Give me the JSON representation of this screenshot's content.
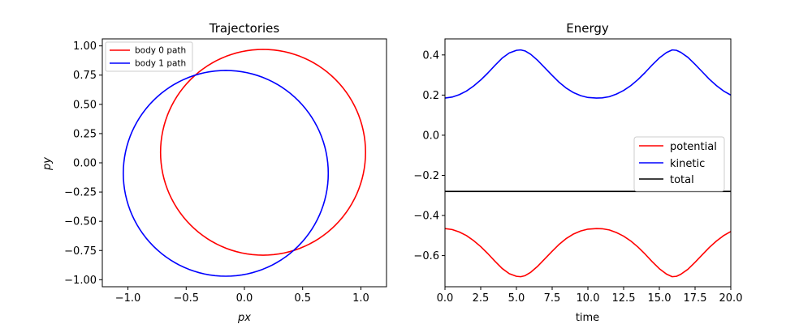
{
  "chart_data": [
    {
      "type": "line",
      "title": "Trajectories",
      "xlabel": "px",
      "ylabel": "py",
      "xlim": [
        -1.22,
        1.22
      ],
      "ylim": [
        -1.06,
        1.06
      ],
      "xticks": [
        -1.0,
        -0.5,
        0.0,
        0.5,
        1.0
      ],
      "xtick_labels": [
        "−1.0",
        "−0.5",
        "0.0",
        "0.5",
        "1.0"
      ],
      "yticks": [
        -1.0,
        -0.75,
        -0.5,
        -0.25,
        0.0,
        0.25,
        0.5,
        0.75,
        1.0
      ],
      "ytick_labels": [
        "−1.00",
        "−0.75",
        "−0.50",
        "−0.25",
        "0.00",
        "0.25",
        "0.50",
        "0.75",
        "1.00"
      ],
      "grid": false,
      "legend_position": "upper-left",
      "series": [
        {
          "name": "body 0 path",
          "color": "#ff0000",
          "shape": "circle",
          "center": [
            0.16,
            0.09
          ],
          "radius": 0.88
        },
        {
          "name": "body 1 path",
          "color": "#0000ff",
          "shape": "circle",
          "center": [
            -0.16,
            -0.09
          ],
          "radius": 0.88
        }
      ]
    },
    {
      "type": "line",
      "title": "Energy",
      "xlabel": "time",
      "ylabel": "",
      "xlim": [
        0,
        20
      ],
      "ylim": [
        -0.755,
        0.48
      ],
      "xticks": [
        0,
        2.5,
        5,
        7.5,
        10,
        12.5,
        15,
        17.5,
        20
      ],
      "xtick_labels": [
        "0.0",
        "2.5",
        "5.0",
        "7.5",
        "10.0",
        "12.5",
        "15.0",
        "17.5",
        "20.0"
      ],
      "yticks": [
        -0.6,
        -0.4,
        -0.2,
        0.0,
        0.2,
        0.4
      ],
      "ytick_labels": [
        "−0.6",
        "−0.4",
        "−0.2",
        "0.0",
        "0.2",
        "0.4"
      ],
      "grid": false,
      "legend_position": "center-right",
      "series": [
        {
          "name": "potential",
          "color": "#ff0000",
          "x": [
            0,
            0.5,
            1,
            1.5,
            2,
            2.5,
            3,
            3.5,
            4,
            4.5,
            5,
            5.3,
            5.6,
            6,
            6.5,
            7,
            7.5,
            8,
            8.5,
            9,
            9.5,
            10,
            10.6,
            11,
            11.5,
            12,
            12.5,
            13,
            13.5,
            14,
            14.5,
            15,
            15.5,
            15.9,
            16.2,
            16.5,
            17,
            17.5,
            18,
            18.5,
            19,
            19.5,
            20
          ],
          "values": [
            -0.465,
            -0.47,
            -0.482,
            -0.5,
            -0.525,
            -0.555,
            -0.59,
            -0.628,
            -0.664,
            -0.69,
            -0.703,
            -0.705,
            -0.7,
            -0.683,
            -0.652,
            -0.615,
            -0.578,
            -0.543,
            -0.514,
            -0.492,
            -0.477,
            -0.468,
            -0.465,
            -0.466,
            -0.472,
            -0.485,
            -0.503,
            -0.527,
            -0.557,
            -0.592,
            -0.63,
            -0.665,
            -0.692,
            -0.705,
            -0.703,
            -0.693,
            -0.668,
            -0.633,
            -0.596,
            -0.559,
            -0.527,
            -0.5,
            -0.48
          ]
        },
        {
          "name": "kinetic",
          "color": "#0000ff",
          "x": [
            0,
            0.5,
            1,
            1.5,
            2,
            2.5,
            3,
            3.5,
            4,
            4.5,
            5,
            5.3,
            5.6,
            6,
            6.5,
            7,
            7.5,
            8,
            8.5,
            9,
            9.5,
            10,
            10.6,
            11,
            11.5,
            12,
            12.5,
            13,
            13.5,
            14,
            14.5,
            15,
            15.5,
            15.9,
            16.2,
            16.5,
            17,
            17.5,
            18,
            18.5,
            19,
            19.5,
            20
          ],
          "values": [
            0.185,
            0.19,
            0.202,
            0.22,
            0.245,
            0.275,
            0.31,
            0.348,
            0.384,
            0.41,
            0.423,
            0.425,
            0.42,
            0.403,
            0.372,
            0.335,
            0.298,
            0.263,
            0.234,
            0.212,
            0.197,
            0.188,
            0.185,
            0.186,
            0.192,
            0.205,
            0.223,
            0.247,
            0.277,
            0.312,
            0.35,
            0.385,
            0.412,
            0.425,
            0.423,
            0.413,
            0.388,
            0.353,
            0.316,
            0.279,
            0.247,
            0.22,
            0.2
          ]
        },
        {
          "name": "total",
          "color": "#000000",
          "x": [
            0,
            20
          ],
          "values": [
            -0.28,
            -0.28
          ]
        }
      ]
    }
  ]
}
